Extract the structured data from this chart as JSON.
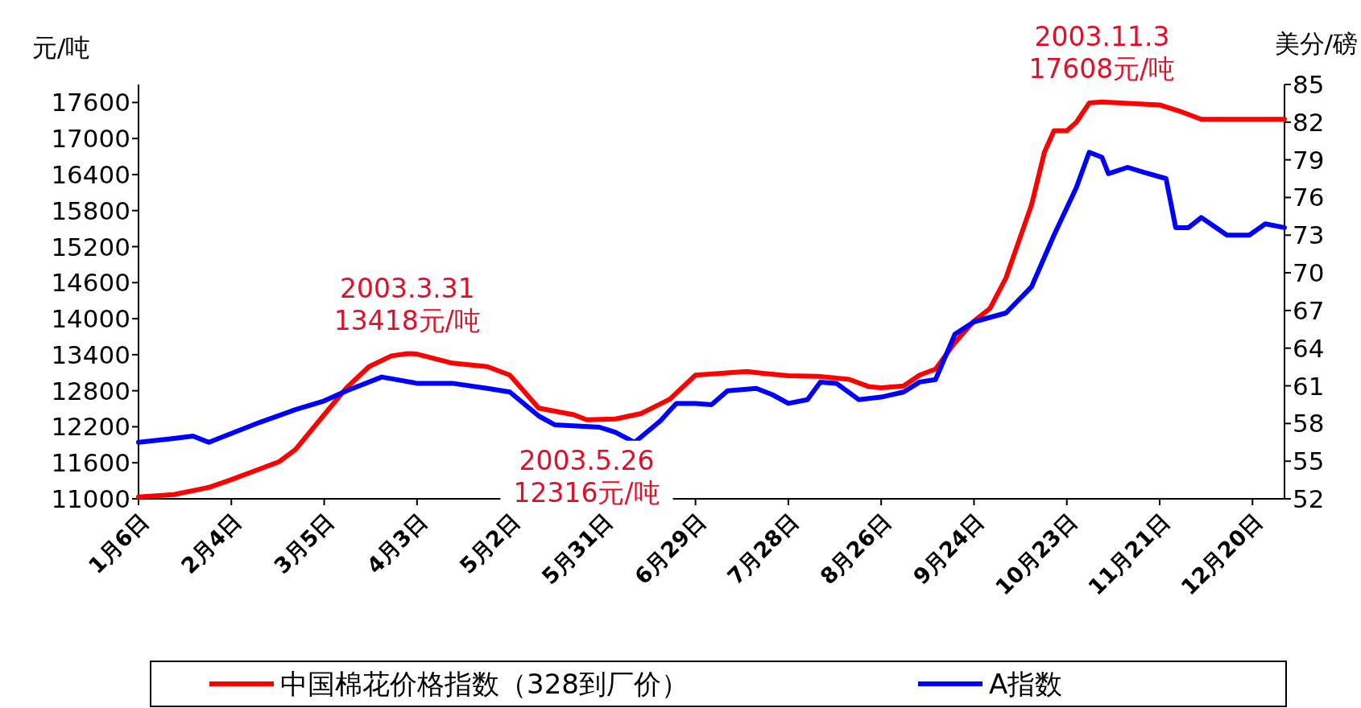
{
  "chart_data": {
    "type": "line",
    "ylabel": "元/吨",
    "y2label": "美分/磅",
    "xlim": [
      "2003-01-06",
      "2003-12-30"
    ],
    "xticks": [
      {
        "value": "2003-01-06",
        "label": "1月6日"
      },
      {
        "value": "2003-02-04",
        "label": "2月4日"
      },
      {
        "value": "2003-03-05",
        "label": "3月5日"
      },
      {
        "value": "2003-04-03",
        "label": "4月3日"
      },
      {
        "value": "2003-05-02",
        "label": "5月2日"
      },
      {
        "value": "2003-05-31",
        "label": "5月31日"
      },
      {
        "value": "2003-06-29",
        "label": "6月29日"
      },
      {
        "value": "2003-07-28",
        "label": "7月28日"
      },
      {
        "value": "2003-08-26",
        "label": "8月26日"
      },
      {
        "value": "2003-09-24",
        "label": "9月24日"
      },
      {
        "value": "2003-10-23",
        "label": "10月23日"
      },
      {
        "value": "2003-11-21",
        "label": "11月21日"
      },
      {
        "value": "2003-12-20",
        "label": "12月20日"
      }
    ],
    "ylim": [
      11000,
      17900
    ],
    "yticks": [
      11000,
      11600,
      12200,
      12800,
      13400,
      14000,
      14600,
      15200,
      15800,
      16400,
      17000,
      17600
    ],
    "y2lim": [
      52,
      85
    ],
    "y2ticks": [
      52,
      55,
      58,
      61,
      64,
      67,
      70,
      73,
      76,
      79,
      82,
      85
    ],
    "legend": "bottom",
    "grid": false,
    "marker": "none",
    "line_style": "solid",
    "annotations": [
      {
        "text": "2003.3.31\n13418元/吨",
        "x": "2003-03-31",
        "y": 13418
      },
      {
        "text": "2003.5.26\n12316元/吨",
        "x": "2003-05-26",
        "y": 12316
      },
      {
        "text": "2003.11.3\n17608元/吨",
        "x": "2003-11-03",
        "y": 17608
      }
    ],
    "series": [
      {
        "name": "中国棉花价格指数（328到厂价）",
        "color": "#ff0000",
        "x": [
          "2003-01-06",
          "2003-01-17",
          "2003-01-28",
          "2003-02-04",
          "2003-02-13",
          "2003-02-19",
          "2003-02-24",
          "2003-03-05",
          "2003-03-12",
          "2003-03-19",
          "2003-03-26",
          "2003-03-31",
          "2003-04-03",
          "2003-04-14",
          "2003-04-25",
          "2003-05-02",
          "2003-05-11",
          "2003-05-22",
          "2003-05-26",
          "2003-06-04",
          "2003-06-12",
          "2003-06-21",
          "2003-06-29",
          "2003-07-07",
          "2003-07-15",
          "2003-07-20",
          "2003-07-28",
          "2003-08-06",
          "2003-08-16",
          "2003-08-22",
          "2003-08-26",
          "2003-09-02",
          "2003-09-07",
          "2003-09-12",
          "2003-09-18",
          "2003-09-24",
          "2003-09-29",
          "2003-10-04",
          "2003-10-12",
          "2003-10-16",
          "2003-10-19",
          "2003-10-23",
          "2003-10-26",
          "2003-10-30",
          "2003-11-03",
          "2003-11-21",
          "2003-11-27",
          "2003-12-04",
          "2003-12-13",
          "2003-12-30"
        ],
        "values": [
          11030,
          11070,
          11190,
          11320,
          11500,
          11620,
          11820,
          12400,
          12850,
          13200,
          13380,
          13418,
          13410,
          13260,
          13200,
          13060,
          12510,
          12400,
          12316,
          12330,
          12420,
          12660,
          13060,
          13090,
          13120,
          13090,
          13050,
          13040,
          12990,
          12870,
          12850,
          12880,
          13060,
          13160,
          13600,
          13960,
          14170,
          14680,
          15900,
          16770,
          17130,
          17130,
          17270,
          17590,
          17608,
          17560,
          17460,
          17320,
          17320,
          17320
        ]
      },
      {
        "name": "A指数",
        "color": "#0000ff",
        "axis": "y2",
        "x": [
          "2003-01-06",
          "2003-01-17",
          "2003-01-23",
          "2003-01-28",
          "2003-02-04",
          "2003-02-13",
          "2003-02-24",
          "2003-03-05",
          "2003-03-12",
          "2003-03-23",
          "2003-04-03",
          "2003-04-14",
          "2003-04-25",
          "2003-05-02",
          "2003-05-11",
          "2003-05-16",
          "2003-05-30",
          "2003-06-04",
          "2003-06-10",
          "2003-06-18",
          "2003-06-23",
          "2003-06-29",
          "2003-07-04",
          "2003-07-09",
          "2003-07-18",
          "2003-07-23",
          "2003-07-28",
          "2003-08-03",
          "2003-08-07",
          "2003-08-12",
          "2003-08-19",
          "2003-08-26",
          "2003-09-02",
          "2003-09-07",
          "2003-09-12",
          "2003-09-18",
          "2003-09-24",
          "2003-10-04",
          "2003-10-12",
          "2003-10-19",
          "2003-10-26",
          "2003-10-30",
          "2003-11-03",
          "2003-11-05",
          "2003-11-11",
          "2003-11-16",
          "2003-11-23",
          "2003-11-26",
          "2003-11-30",
          "2003-12-04",
          "2003-12-08",
          "2003-12-12",
          "2003-12-19",
          "2003-12-24",
          "2003-12-30"
        ],
        "values": [
          56.5,
          56.8,
          57.0,
          56.5,
          57.2,
          58.1,
          59.1,
          59.8,
          60.6,
          61.7,
          61.2,
          61.2,
          60.8,
          60.5,
          58.6,
          57.9,
          57.7,
          57.3,
          56.5,
          58.2,
          59.6,
          59.6,
          59.5,
          60.6,
          60.8,
          60.3,
          59.6,
          59.9,
          61.3,
          61.2,
          59.9,
          60.1,
          60.5,
          61.3,
          61.5,
          65.1,
          66.1,
          66.8,
          68.9,
          73.0,
          76.8,
          79.6,
          79.2,
          77.9,
          78.4,
          78.0,
          77.5,
          73.6,
          73.6,
          74.4,
          73.7,
          73.0,
          73.0,
          73.9,
          73.6
        ]
      }
    ]
  }
}
